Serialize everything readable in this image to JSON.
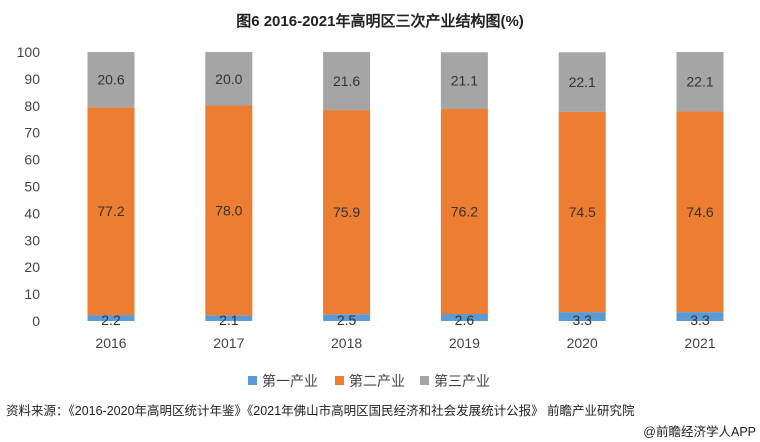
{
  "chart_data": {
    "type": "stacked-bar",
    "title": "图6 2016-2021年高明区三次产业结构图(%)",
    "categories": [
      "2016",
      "2017",
      "2018",
      "2019",
      "2020",
      "2021"
    ],
    "ylim": [
      0,
      100
    ],
    "yticks": [
      0,
      10,
      20,
      30,
      40,
      50,
      60,
      70,
      80,
      90,
      100
    ],
    "grid": false,
    "legend_position": "bottom",
    "series": [
      {
        "name": "第一产业",
        "color": "#5b9bd5",
        "values": [
          2.2,
          2.1,
          2.5,
          2.6,
          3.3,
          3.3
        ]
      },
      {
        "name": "第二产业",
        "color": "#ed7d31",
        "values": [
          77.2,
          78.0,
          75.9,
          76.2,
          74.5,
          74.6
        ]
      },
      {
        "name": "第三产业",
        "color": "#a5a5a5",
        "values": [
          20.6,
          20.0,
          21.6,
          21.1,
          22.1,
          22.1
        ]
      }
    ]
  },
  "footer": {
    "source": "资料来源：《2016-2020年高明区统计年鉴》《2021年佛山市高明区国民经济和社会发展统计公报》 前瞻产业研究院",
    "credit": "@前瞻经济学人APP"
  },
  "watermark": "前瞻产业研究院"
}
